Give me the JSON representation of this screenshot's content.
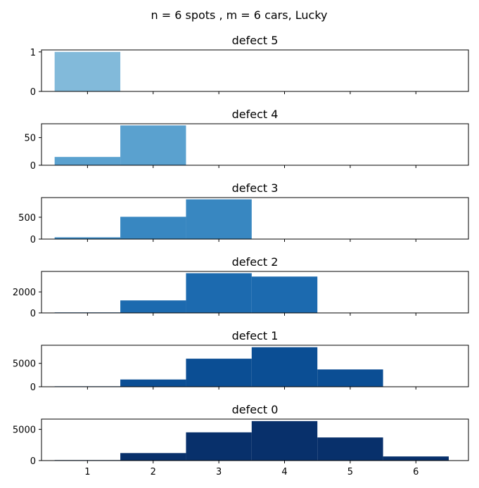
{
  "figure_title": "n = 6 spots , m = 6 cars, Lucky",
  "chart_data": [
    {
      "type": "bar",
      "title": "defect 5",
      "categories": [
        1,
        2,
        3,
        4,
        5,
        6
      ],
      "values": [
        1,
        0,
        0,
        0,
        0,
        0
      ],
      "xlim": [
        0.3,
        6.8
      ],
      "ylim": [
        0,
        1.05
      ],
      "yticks": [
        0,
        1
      ],
      "xticks": [
        1,
        2,
        3,
        4,
        5,
        6
      ],
      "xtick_labels_shown": false,
      "color": "#82bada"
    },
    {
      "type": "bar",
      "title": "defect 4",
      "categories": [
        1,
        2,
        3,
        4,
        5,
        6
      ],
      "values": [
        15,
        72,
        0,
        0,
        0,
        0
      ],
      "xlim": [
        0.3,
        6.8
      ],
      "ylim": [
        0,
        75
      ],
      "yticks": [
        0,
        50
      ],
      "xticks": [
        1,
        2,
        3,
        4,
        5,
        6
      ],
      "xtick_labels_shown": false,
      "color": "#5aa1cf"
    },
    {
      "type": "bar",
      "title": "defect 3",
      "categories": [
        1,
        2,
        3,
        4,
        5,
        6
      ],
      "values": [
        40,
        510,
        910,
        0,
        0,
        0
      ],
      "xlim": [
        0.3,
        6.8
      ],
      "ylim": [
        0,
        950
      ],
      "yticks": [
        0,
        500
      ],
      "xticks": [
        1,
        2,
        3,
        4,
        5,
        6
      ],
      "xtick_labels_shown": false,
      "color": "#3887c1"
    },
    {
      "type": "bar",
      "title": "defect 2",
      "categories": [
        1,
        2,
        3,
        4,
        5,
        6
      ],
      "values": [
        50,
        1190,
        3780,
        3460,
        0,
        0
      ],
      "xlim": [
        0.3,
        6.8
      ],
      "ylim": [
        0,
        3950
      ],
      "yticks": [
        0,
        2000
      ],
      "xticks": [
        1,
        2,
        3,
        4,
        5,
        6
      ],
      "xtick_labels_shown": false,
      "color": "#1c6aaf"
    },
    {
      "type": "bar",
      "title": "defect 1",
      "categories": [
        1,
        2,
        3,
        4,
        5,
        6
      ],
      "values": [
        100,
        1550,
        6000,
        8450,
        3700,
        0
      ],
      "xlim": [
        0.3,
        6.8
      ],
      "ylim": [
        0,
        8870
      ],
      "yticks": [
        0,
        5000
      ],
      "xticks": [
        1,
        2,
        3,
        4,
        5,
        6
      ],
      "xtick_labels_shown": false,
      "color": "#0b4e94"
    },
    {
      "type": "bar",
      "title": "defect 0",
      "categories": [
        1,
        2,
        3,
        4,
        5,
        6
      ],
      "values": [
        80,
        1200,
        4520,
        6320,
        3700,
        660
      ],
      "xlim": [
        0.3,
        6.8
      ],
      "ylim": [
        0,
        6640
      ],
      "yticks": [
        0,
        5000
      ],
      "xticks": [
        1,
        2,
        3,
        4,
        5,
        6
      ],
      "xtick_labels_shown": true,
      "color": "#08306b"
    }
  ]
}
